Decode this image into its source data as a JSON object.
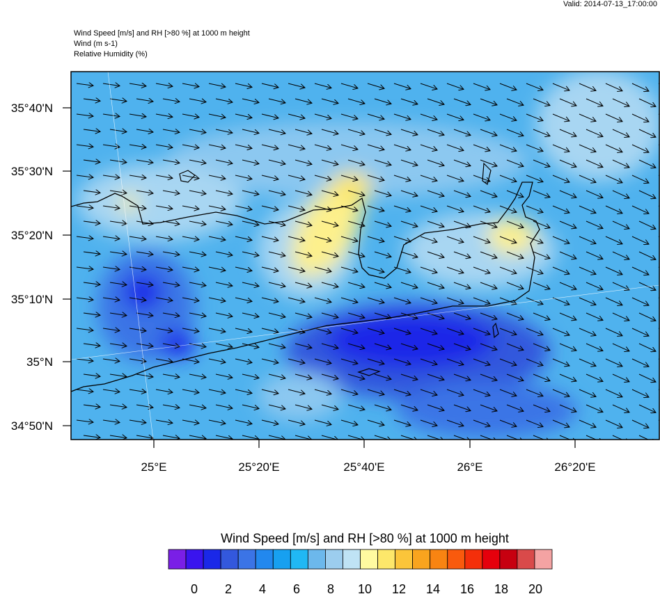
{
  "header": {
    "valid": "Valid: 2014-07-13_17:00:00",
    "lines": [
      "Wind Speed [m/s] and RH [>80 %] at 1000 m height",
      "Wind   (m s-1)",
      "Relative Humidity   (%)"
    ]
  },
  "map": {
    "lat_labels": [
      "35°40'N",
      "35°30'N",
      "35°20'N",
      "35°10'N",
      "35°N",
      "34°50'N"
    ],
    "lon_labels": [
      "25°E",
      "25°20'E",
      "25°40'E",
      "26°E",
      "26°20'E"
    ]
  },
  "colorbar": {
    "title": "Wind Speed [m/s] and RH [>80 %] at 1000 m height",
    "colors": [
      "#7a1fe6",
      "#3a14ee",
      "#1a28e8",
      "#3358dd",
      "#3b74e6",
      "#2288ee",
      "#17a0f0",
      "#20b8f4",
      "#6cb8ec",
      "#9ccdee",
      "#bfe3f5",
      "#fffaa0",
      "#fde76a",
      "#fbc53a",
      "#f9a41e",
      "#f88412",
      "#f95a0d",
      "#f42f0a",
      "#e5000c",
      "#c70010",
      "#d94a4a",
      "#f4a3a3"
    ],
    "labels": [
      "0",
      "2",
      "4",
      "6",
      "8",
      "10",
      "12",
      "14",
      "16",
      "18",
      "20"
    ]
  }
}
